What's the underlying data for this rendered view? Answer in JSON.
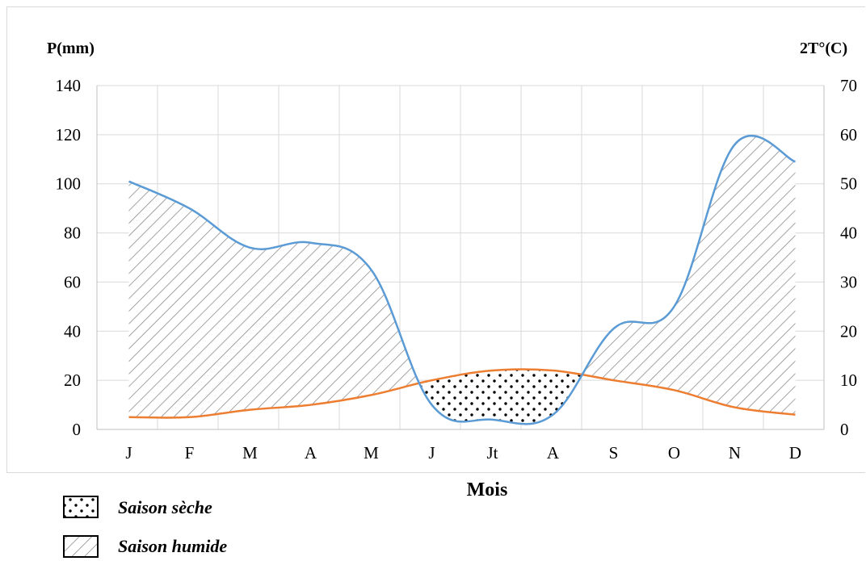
{
  "chart_data": {
    "type": "line",
    "xlabel": "Mois",
    "y_left_label": "P(mm)",
    "y_right_label": "2T°(C)",
    "categories": [
      "J",
      "F",
      "M",
      "A",
      "M",
      "J",
      "Jt",
      "A",
      "S",
      "O",
      "N",
      "D"
    ],
    "y_left_ticks": [
      "0",
      "20",
      "40",
      "60",
      "80",
      "100",
      "120",
      "140"
    ],
    "y_right_ticks": [
      "0",
      "10",
      "20",
      "30",
      "40",
      "50",
      "60",
      "70"
    ],
    "ylim_left": [
      0,
      140
    ],
    "ylim_right": [
      0,
      70
    ],
    "grid": true,
    "series": [
      {
        "axis": "left",
        "color": "#5b9bd5",
        "values": [
          101,
          90,
          74,
          76,
          65,
          10,
          4,
          6,
          41,
          50,
          116,
          109
        ]
      },
      {
        "axis": "right",
        "color": "#ed7d31",
        "values": [
          2.5,
          2.5,
          4,
          5,
          7,
          10,
          12,
          12,
          10,
          8,
          4.5,
          3
        ]
      }
    ]
  },
  "legend": {
    "dry_label": "Saison sèche",
    "wet_label": "Saison humide"
  }
}
